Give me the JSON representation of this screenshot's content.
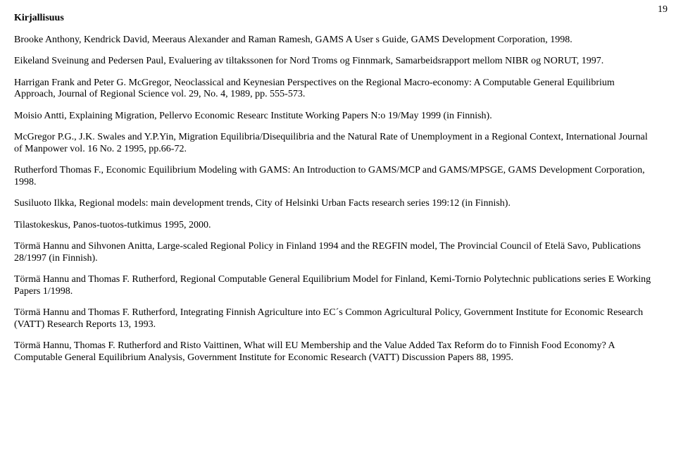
{
  "page_number": "19",
  "heading": "Kirjallisuus",
  "refs": [
    "Brooke Anthony, Kendrick David, Meeraus Alexander and Raman Ramesh, GAMS A User s Guide, GAMS Development Corporation, 1998.",
    "Eikeland Sveinung and Pedersen Paul, Evaluering av tiltakssonen for Nord Troms og Finnmark, Samarbeidsrapport mellom NIBR og NORUT, 1997.",
    "Harrigan Frank and Peter G. McGregor, Neoclassical and Keynesian Perspectives on the Regional Macro-economy: A Computable General Equilibrium Approach, Journal of Regional Science vol. 29, No. 4, 1989, pp. 555-573.",
    "Moisio Antti, Explaining Migration, Pellervo Economic Researc Institute Working Papers N:o 19/May 1999 (in Finnish).",
    "McGregor P.G., J.K. Swales and Y.P.Yin, Migration Equilibria/Disequilibria and the Natural Rate of Unemployment in a Regional Context, International Journal of Manpower vol. 16 No. 2 1995, pp.66-72.",
    "Rutherford Thomas F., Economic Equilibrium Modeling with GAMS: An Introduction to GAMS/MCP and GAMS/MPSGE, GAMS Development Corporation, 1998.",
    "Susiluoto Ilkka, Regional models: main development trends, City of Helsinki Urban Facts research series 199:12 (in Finnish).",
    "Tilastokeskus, Panos-tuotos-tutkimus 1995, 2000.",
    "Törmä Hannu and Sihvonen Anitta, Large-scaled Regional Policy in Finland 1994 and the REGFIN model, The Provincial Council of Etelä Savo, Publications 28/1997 (in Finnish).",
    "Törmä Hannu and Thomas F. Rutherford, Regional Computable General Equilibrium Model for Finland, Kemi-Tornio Polytechnic publications series E Working Papers 1/1998.",
    "Törmä Hannu and Thomas F. Rutherford, Integrating Finnish Agriculture into EC´s Common Agricultural Policy, Government Institute for Economic Research (VATT) Research Reports 13, 1993.",
    "Törmä Hannu, Thomas F. Rutherford and Risto Vaittinen, What will EU Membership and the Value Added Tax Reform do to Finnish Food Economy? A Computable General Equilibrium Analysis, Government Institute for Economic Research (VATT) Discussion Papers 88, 1995."
  ]
}
